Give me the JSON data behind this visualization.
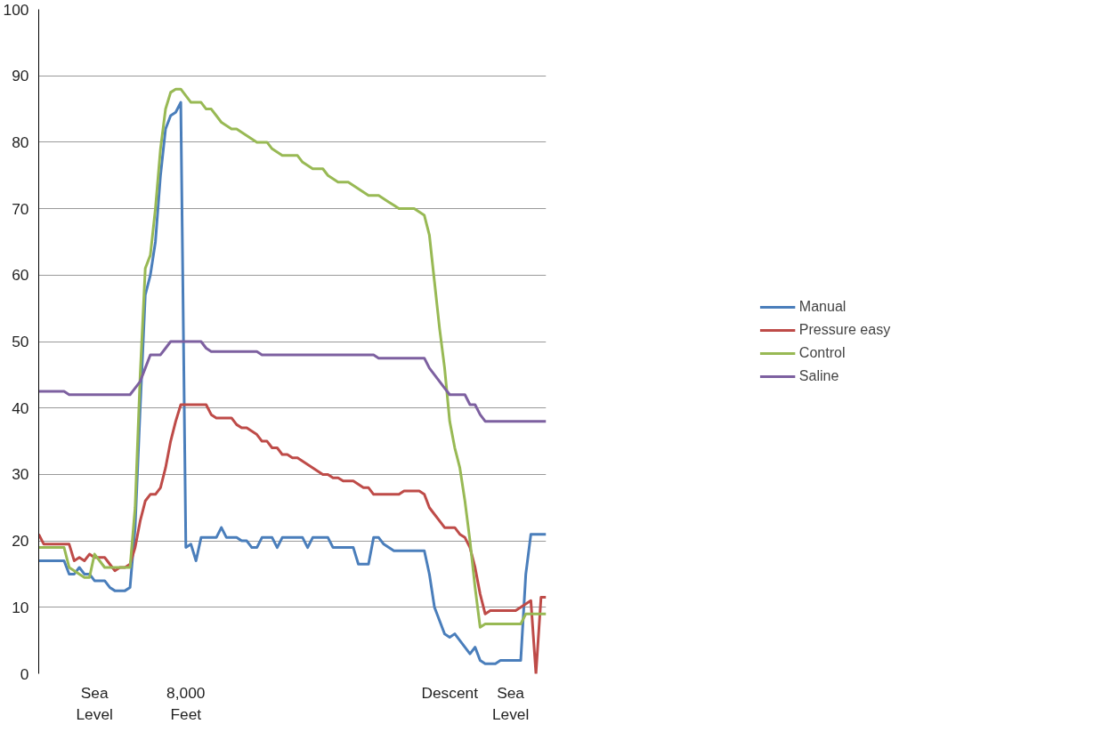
{
  "chart_data": {
    "type": "line",
    "categories": [
      null,
      null,
      null,
      null,
      null,
      null,
      null,
      null,
      null,
      null,
      null,
      "Sea\nLevel",
      null,
      null,
      null,
      null,
      null,
      null,
      null,
      null,
      null,
      null,
      null,
      null,
      null,
      null,
      null,
      null,
      null,
      "8,000\nFeet",
      null,
      null,
      null,
      null,
      null,
      null,
      null,
      null,
      null,
      null,
      null,
      null,
      null,
      null,
      null,
      null,
      null,
      null,
      null,
      null,
      null,
      null,
      null,
      null,
      null,
      null,
      null,
      null,
      null,
      null,
      null,
      null,
      null,
      null,
      null,
      null,
      null,
      null,
      null,
      null,
      null,
      null,
      null,
      null,
      null,
      null,
      null,
      null,
      null,
      null,
      null,
      "Descent",
      null,
      null,
      null,
      null,
      null,
      null,
      null,
      null,
      null,
      null,
      null,
      "Sea\nLevel",
      null,
      null,
      null,
      null,
      null,
      null,
      null
    ],
    "series": [
      {
        "name": "Manual",
        "color": "#4a7ebb",
        "values": [
          17,
          17,
          17,
          17,
          17,
          17,
          15,
          15,
          16,
          15,
          15,
          14,
          14,
          14,
          13,
          12.5,
          12.5,
          12.5,
          13,
          22,
          40,
          57,
          60,
          65,
          75,
          82,
          84,
          84.5,
          86,
          19,
          19.5,
          17,
          20.5,
          20.5,
          20.5,
          20.5,
          22,
          20.5,
          20.5,
          20.5,
          20,
          20,
          19,
          19,
          20.5,
          20.5,
          20.5,
          19,
          20.5,
          20.5,
          20.5,
          20.5,
          20.5,
          19,
          20.5,
          20.5,
          20.5,
          20.5,
          19,
          19,
          19,
          19,
          19,
          16.5,
          16.5,
          16.5,
          20.5,
          20.5,
          19.5,
          19,
          18.5,
          18.5,
          18.5,
          18.5,
          18.5,
          18.5,
          18.5,
          15,
          10,
          8,
          6,
          5.5,
          6,
          5,
          4,
          3,
          4,
          2,
          1.5,
          1.5,
          1.5,
          2,
          2,
          2,
          2,
          2,
          15,
          21,
          21,
          21,
          21
        ]
      },
      {
        "name": "Pressure easy",
        "color": "#be4b48",
        "values": [
          21,
          19.5,
          19.5,
          19.5,
          19.5,
          19.5,
          19.5,
          17,
          17.5,
          17,
          18,
          17.5,
          17.5,
          17.5,
          16.5,
          15.5,
          16,
          16,
          16.5,
          19,
          23,
          26,
          27,
          27,
          28,
          31,
          35,
          38,
          40.5,
          40.5,
          40.5,
          40.5,
          40.5,
          40.5,
          39,
          38.5,
          38.5,
          38.5,
          38.5,
          37.5,
          37,
          37,
          36.5,
          36,
          35,
          35,
          34,
          34,
          33,
          33,
          32.5,
          32.5,
          32,
          31.5,
          31,
          30.5,
          30,
          30,
          29.5,
          29.5,
          29,
          29,
          29,
          28.5,
          28,
          28,
          27,
          27,
          27,
          27,
          27,
          27,
          27.5,
          27.5,
          27.5,
          27.5,
          27,
          25,
          24,
          23,
          22,
          22,
          22,
          21,
          20.5,
          19,
          16,
          12,
          9,
          9.5,
          9.5,
          9.5,
          9.5,
          9.5,
          9.5,
          10,
          10.5,
          11,
          0,
          11.5,
          11.5
        ]
      },
      {
        "name": "Control",
        "color": "#98b954",
        "values": [
          19,
          19,
          19,
          19,
          19,
          19,
          16,
          15.5,
          15,
          14.5,
          14.5,
          18,
          17,
          16,
          16,
          16,
          16,
          16,
          16,
          25,
          45,
          61,
          63,
          70,
          79,
          85,
          87.5,
          88,
          88,
          87,
          86,
          86,
          86,
          85,
          85,
          84,
          83,
          82.5,
          82,
          82,
          81.5,
          81,
          80.5,
          80,
          80,
          80,
          79,
          78.5,
          78,
          78,
          78,
          78,
          77,
          76.5,
          76,
          76,
          76,
          75,
          74.5,
          74,
          74,
          74,
          73.5,
          73,
          72.5,
          72,
          72,
          72,
          71.5,
          71,
          70.5,
          70,
          70,
          70,
          70,
          69.5,
          69,
          66,
          59,
          52,
          46,
          38,
          34,
          31,
          26,
          20,
          13,
          7,
          7.5,
          7.5,
          7.5,
          7.5,
          7.5,
          7.5,
          7.5,
          7.5,
          9,
          9,
          9,
          9,
          9
        ]
      },
      {
        "name": "Saline",
        "color": "#7d60a0",
        "values": [
          42.5,
          42.5,
          42.5,
          42.5,
          42.5,
          42.5,
          42,
          42,
          42,
          42,
          42,
          42,
          42,
          42,
          42,
          42,
          42,
          42,
          42,
          43,
          44,
          46,
          48,
          48,
          48,
          49,
          50,
          50,
          50,
          50,
          50,
          50,
          50,
          49,
          48.5,
          48.5,
          48.5,
          48.5,
          48.5,
          48.5,
          48.5,
          48.5,
          48.5,
          48.5,
          48,
          48,
          48,
          48,
          48,
          48,
          48,
          48,
          48,
          48,
          48,
          48,
          48,
          48,
          48,
          48,
          48,
          48,
          48,
          48,
          48,
          48,
          48,
          47.5,
          47.5,
          47.5,
          47.5,
          47.5,
          47.5,
          47.5,
          47.5,
          47.5,
          47.5,
          46,
          45,
          44,
          43,
          42,
          42,
          42,
          42,
          40.5,
          40.5,
          39,
          38,
          38,
          38,
          38,
          38,
          38,
          38,
          38,
          38,
          38,
          38,
          38,
          38
        ]
      }
    ],
    "ylim": [
      0,
      100
    ],
    "yticks": [
      0,
      10,
      20,
      30,
      40,
      50,
      60,
      70,
      80,
      90,
      100
    ],
    "grid": "y",
    "legend": "right",
    "marker": "none",
    "line_style": "solid"
  }
}
